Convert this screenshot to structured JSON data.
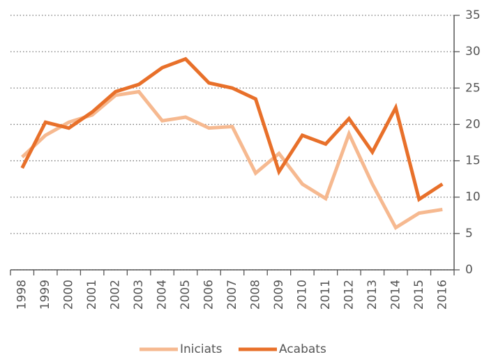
{
  "chart_data": {
    "type": "line",
    "categories": [
      "1998",
      "1999",
      "2000",
      "2001",
      "2002",
      "2003",
      "2004",
      "2005",
      "2006",
      "2007",
      "2008",
      "2009",
      "2010",
      "2011",
      "2012",
      "2013",
      "2014",
      "2015",
      "2016"
    ],
    "series": [
      {
        "name": "Iniciats",
        "color": "#f6b990",
        "values": [
          15.5,
          18.5,
          20.3,
          21.3,
          24.0,
          24.5,
          20.5,
          21.0,
          19.5,
          19.7,
          13.3,
          16.0,
          11.8,
          9.8,
          18.7,
          11.8,
          5.8,
          7.8,
          8.3
        ]
      },
      {
        "name": "Acabats",
        "color": "#e8702a",
        "values": [
          14.0,
          20.3,
          19.5,
          21.7,
          24.5,
          25.5,
          27.8,
          29.0,
          25.7,
          25.0,
          23.5,
          13.5,
          18.5,
          17.3,
          20.8,
          16.2,
          22.3,
          9.7,
          11.8
        ]
      }
    ],
    "ylim": [
      0,
      35
    ],
    "yticks": [
      0,
      5,
      10,
      15,
      20,
      25,
      30,
      35
    ],
    "grid": true,
    "legend": "bottom"
  }
}
